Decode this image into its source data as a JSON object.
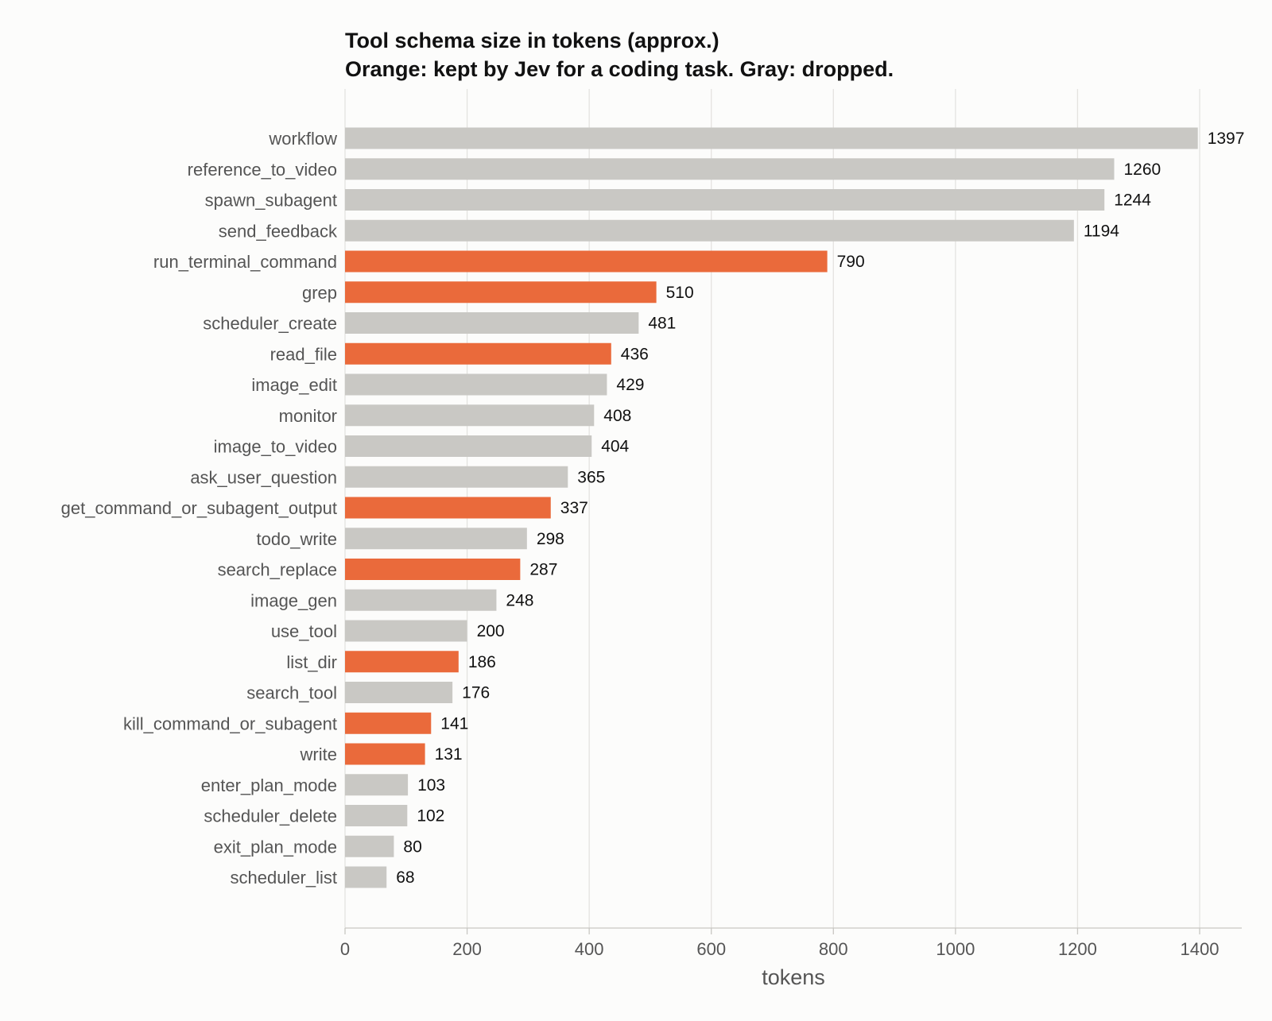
{
  "chart_data": {
    "type": "bar",
    "orientation": "horizontal",
    "title": "Tool schema size in tokens (approx.)",
    "subtitle": "Orange: kept by Jev for a coding task. Gray: dropped.",
    "xlabel": "tokens",
    "ylabel": "",
    "xlim": [
      0,
      1400
    ],
    "xticks": [
      "0",
      "200",
      "400",
      "600",
      "800",
      "1000",
      "1200",
      "1400"
    ],
    "grid": "vertical",
    "colors": {
      "kept": "#ea6a3b",
      "dropped": "#c9c8c4"
    },
    "categories": [
      "workflow",
      "reference_to_video",
      "spawn_subagent",
      "send_feedback",
      "run_terminal_command",
      "grep",
      "scheduler_create",
      "read_file",
      "image_edit",
      "monitor",
      "image_to_video",
      "ask_user_question",
      "get_command_or_subagent_output",
      "todo_write",
      "search_replace",
      "image_gen",
      "use_tool",
      "list_dir",
      "search_tool",
      "kill_command_or_subagent",
      "write",
      "enter_plan_mode",
      "scheduler_delete",
      "exit_plan_mode",
      "scheduler_list"
    ],
    "values": [
      1397,
      1260,
      1244,
      1194,
      790,
      510,
      481,
      436,
      429,
      408,
      404,
      365,
      337,
      298,
      287,
      248,
      200,
      186,
      176,
      141,
      131,
      103,
      102,
      80,
      68
    ],
    "status": [
      "dropped",
      "dropped",
      "dropped",
      "dropped",
      "kept",
      "kept",
      "dropped",
      "kept",
      "dropped",
      "dropped",
      "dropped",
      "dropped",
      "kept",
      "dropped",
      "kept",
      "dropped",
      "dropped",
      "kept",
      "dropped",
      "kept",
      "kept",
      "dropped",
      "dropped",
      "dropped",
      "dropped"
    ]
  }
}
